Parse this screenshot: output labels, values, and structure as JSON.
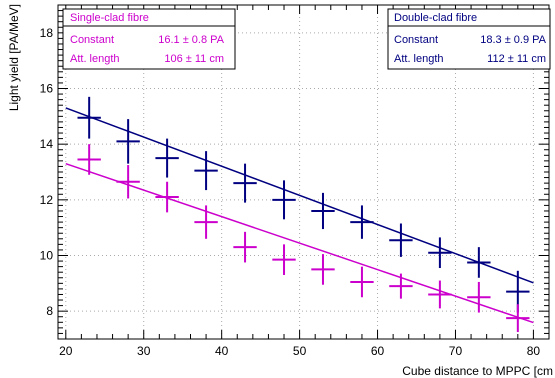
{
  "chart_data": {
    "type": "scatter",
    "xlabel": "Cube distance to MPPC [cm",
    "ylabel": "Light yield [PA/MeV]",
    "xlim": [
      19,
      82
    ],
    "ylim": [
      7.0,
      19.0
    ],
    "x_ticks": [
      20,
      30,
      40,
      50,
      60,
      70,
      80
    ],
    "y_ticks": [
      8,
      10,
      12,
      14,
      16,
      18
    ],
    "grid": true,
    "series": [
      {
        "name": "Double-clad fibre",
        "color": "#000080",
        "points": [
          {
            "x": 23,
            "y": 14.95,
            "yerr": 0.75,
            "xerr": 1.5
          },
          {
            "x": 28,
            "y": 14.1,
            "yerr": 0.8,
            "xerr": 1.5
          },
          {
            "x": 33,
            "y": 13.5,
            "yerr": 0.7,
            "xerr": 1.5
          },
          {
            "x": 38,
            "y": 13.05,
            "yerr": 0.7,
            "xerr": 1.5
          },
          {
            "x": 43,
            "y": 12.6,
            "yerr": 0.7,
            "xerr": 1.5
          },
          {
            "x": 48,
            "y": 12.0,
            "yerr": 0.7,
            "xerr": 1.5
          },
          {
            "x": 53,
            "y": 11.6,
            "yerr": 0.65,
            "xerr": 1.5
          },
          {
            "x": 58,
            "y": 11.2,
            "yerr": 0.6,
            "xerr": 1.5
          },
          {
            "x": 63,
            "y": 10.55,
            "yerr": 0.6,
            "xerr": 1.5
          },
          {
            "x": 68,
            "y": 10.1,
            "yerr": 0.55,
            "xerr": 1.5
          },
          {
            "x": 73,
            "y": 9.75,
            "yerr": 0.55,
            "xerr": 1.5
          },
          {
            "x": 78,
            "y": 8.7,
            "yerr": 0.75,
            "xerr": 1.5
          }
        ],
        "fit": {
          "x": [
            20,
            80
          ],
          "y": [
            15.3,
            9.02
          ]
        }
      },
      {
        "name": "Single-clad fibre",
        "color": "#cc00cc",
        "points": [
          {
            "x": 23,
            "y": 13.45,
            "yerr": 0.55,
            "xerr": 1.5
          },
          {
            "x": 28,
            "y": 12.65,
            "yerr": 0.6,
            "xerr": 1.5
          },
          {
            "x": 33,
            "y": 12.1,
            "yerr": 0.55,
            "xerr": 1.5
          },
          {
            "x": 38,
            "y": 11.2,
            "yerr": 0.6,
            "xerr": 1.5
          },
          {
            "x": 43,
            "y": 10.3,
            "yerr": 0.55,
            "xerr": 1.5
          },
          {
            "x": 48,
            "y": 9.85,
            "yerr": 0.55,
            "xerr": 1.5
          },
          {
            "x": 53,
            "y": 9.5,
            "yerr": 0.55,
            "xerr": 1.5
          },
          {
            "x": 58,
            "y": 9.05,
            "yerr": 0.55,
            "xerr": 1.5
          },
          {
            "x": 63,
            "y": 8.9,
            "yerr": 0.45,
            "xerr": 1.5
          },
          {
            "x": 68,
            "y": 8.6,
            "yerr": 0.5,
            "xerr": 1.5
          },
          {
            "x": 73,
            "y": 8.5,
            "yerr": 0.55,
            "xerr": 1.5
          },
          {
            "x": 78,
            "y": 7.75,
            "yerr": 0.5,
            "xerr": 1.5
          }
        ],
        "fit": {
          "x": [
            20,
            80
          ],
          "y": [
            13.3,
            7.59
          ]
        }
      }
    ],
    "legends": [
      {
        "title": "Single-clad fibre",
        "color": "#cc00cc",
        "placement": "top-left",
        "rows": [
          {
            "label": "Constant",
            "value": "16.1 ± 0.8 PA"
          },
          {
            "label": "Att. length",
            "value": "106 ± 11 cm"
          }
        ]
      },
      {
        "title": "Double-clad fibre",
        "color": "#000080",
        "placement": "top-right",
        "rows": [
          {
            "label": "Constant",
            "value": "18.3 ± 0.9 PA"
          },
          {
            "label": "Att. length",
            "value": "112 ± 11 cm"
          }
        ]
      }
    ]
  }
}
